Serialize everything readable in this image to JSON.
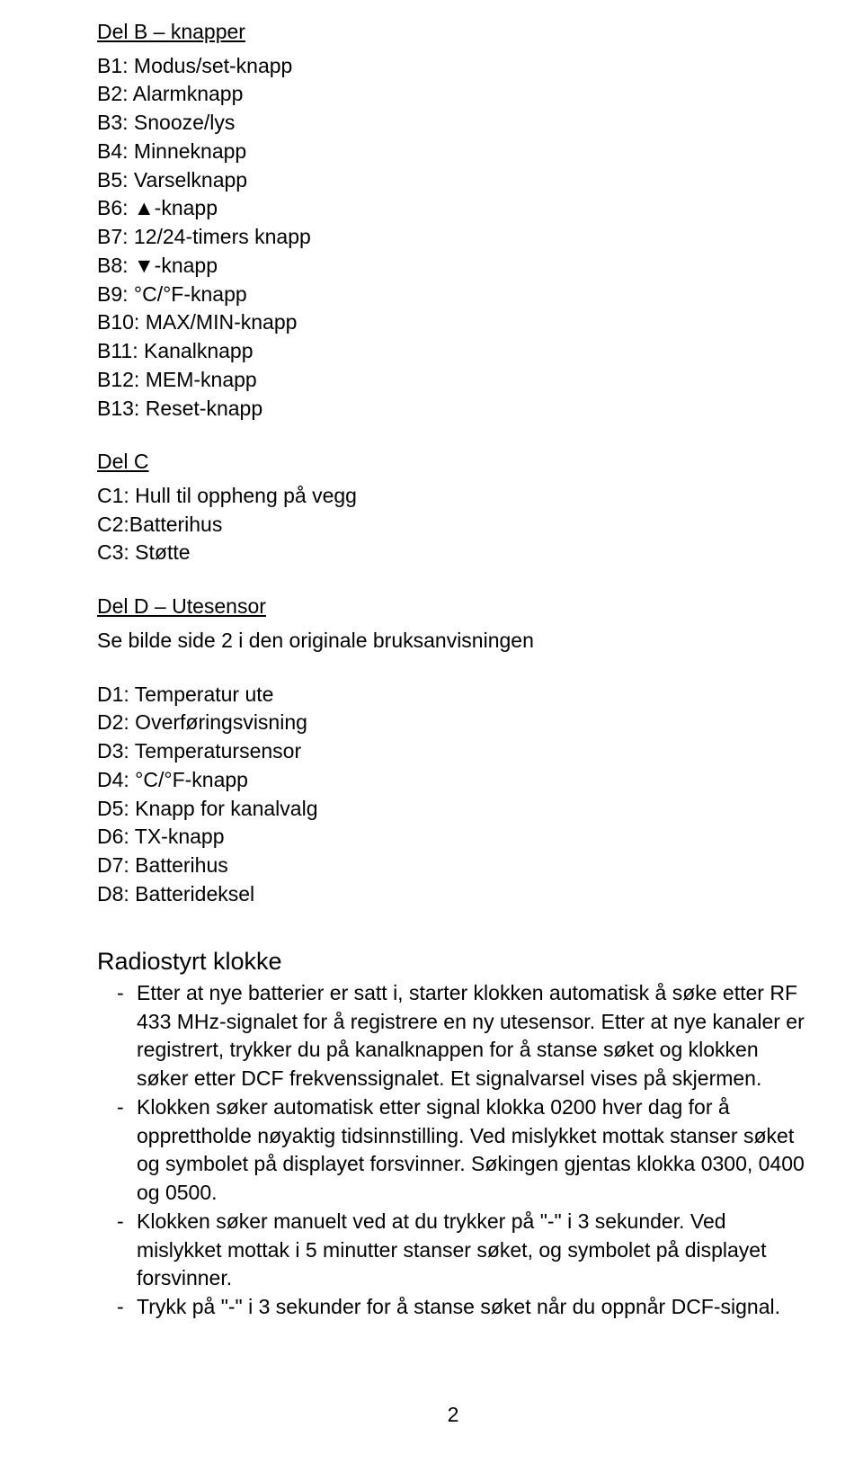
{
  "sectionB": {
    "heading": "Del B – knapper",
    "items": [
      "B1: Modus/set-knapp",
      "B2: Alarmknapp",
      "B3: Snooze/lys",
      "B4: Minneknapp",
      "B5: Varselknapp",
      "B6: ▲-knapp",
      "B7: 12/24-timers knapp",
      "B8: ▼-knapp",
      "B9: °C/°F-knapp",
      "B10: MAX/MIN-knapp",
      "B11: Kanalknapp",
      "B12: MEM-knapp",
      "B13: Reset-knapp"
    ]
  },
  "sectionC": {
    "heading": "Del C",
    "items": [
      "C1: Hull til oppheng på vegg",
      "C2:Batterihus",
      "C3: Støtte"
    ]
  },
  "sectionD": {
    "heading": "Del D – Utesensor",
    "note": "Se bilde side 2 i den originale bruksanvisningen",
    "items": [
      "D1: Temperatur ute",
      "D2: Overføringsvisning",
      "D3: Temperatursensor",
      "D4: °C/°F-knapp",
      "D5: Knapp for kanalvalg",
      "D6: TX-knapp",
      "D7: Batterihus",
      "D8: Batterideksel"
    ]
  },
  "radio": {
    "title": "Radiostyrt klokke",
    "bullets": [
      "Etter at nye batterier er satt i, starter klokken automatisk å søke etter RF 433 MHz-signalet for å registrere en ny utesensor. Etter at nye kanaler er registrert, trykker du på kanalknappen for å stanse søket og klokken søker etter DCF frekvenssignalet. Et signalvarsel vises på skjermen.",
      "Klokken søker automatisk etter signal klokka 0200 hver dag for å opprettholde nøyaktig tidsinnstilling. Ved mislykket mottak stanser søket og symbolet på displayet forsvinner. Søkingen gjentas klokka 0300, 0400 og 0500.",
      "Klokken søker manuelt ved at du trykker på \"-\" i 3 sekunder. Ved mislykket mottak i 5 minutter stanser søket, og symbolet på displayet forsvinner.",
      "Trykk på \"-\" i 3 sekunder for å stanse søket når du oppnår DCF-signal."
    ]
  },
  "pageNumber": "2",
  "style": {
    "background_color": "#ffffff",
    "text_color": "#000000",
    "body_fontsize": 23,
    "title_fontsize": 27,
    "font_family": "Arial"
  }
}
